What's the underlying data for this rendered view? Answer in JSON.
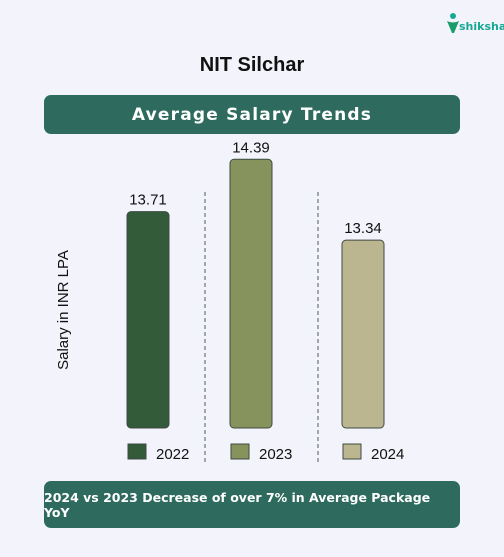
{
  "brand": {
    "logo_text": "shiksha",
    "logo_icon": "shiksha-person-icon"
  },
  "page_title": "NIT Silchar",
  "banner_title": "Average Salary Trends",
  "footer_note": "2024 vs 2023 Decrease of over 7% in Average Package YoY",
  "chart_data": {
    "type": "bar",
    "title": "Average Salary Trends",
    "ylabel": "Salary in INR LPA",
    "xlabel": "",
    "categories": [
      "2022",
      "2023",
      "2024"
    ],
    "values": [
      13.71,
      14.39,
      13.34
    ],
    "value_labels": [
      "13.71",
      "14.39",
      "13.34"
    ],
    "colors": [
      "#335b3a",
      "#86935c",
      "#bbb68f"
    ],
    "legend": [
      "2022",
      "2023",
      "2024"
    ],
    "legend_position": "bottom",
    "grid": false,
    "separators": "dashed vertical lines between bars"
  }
}
